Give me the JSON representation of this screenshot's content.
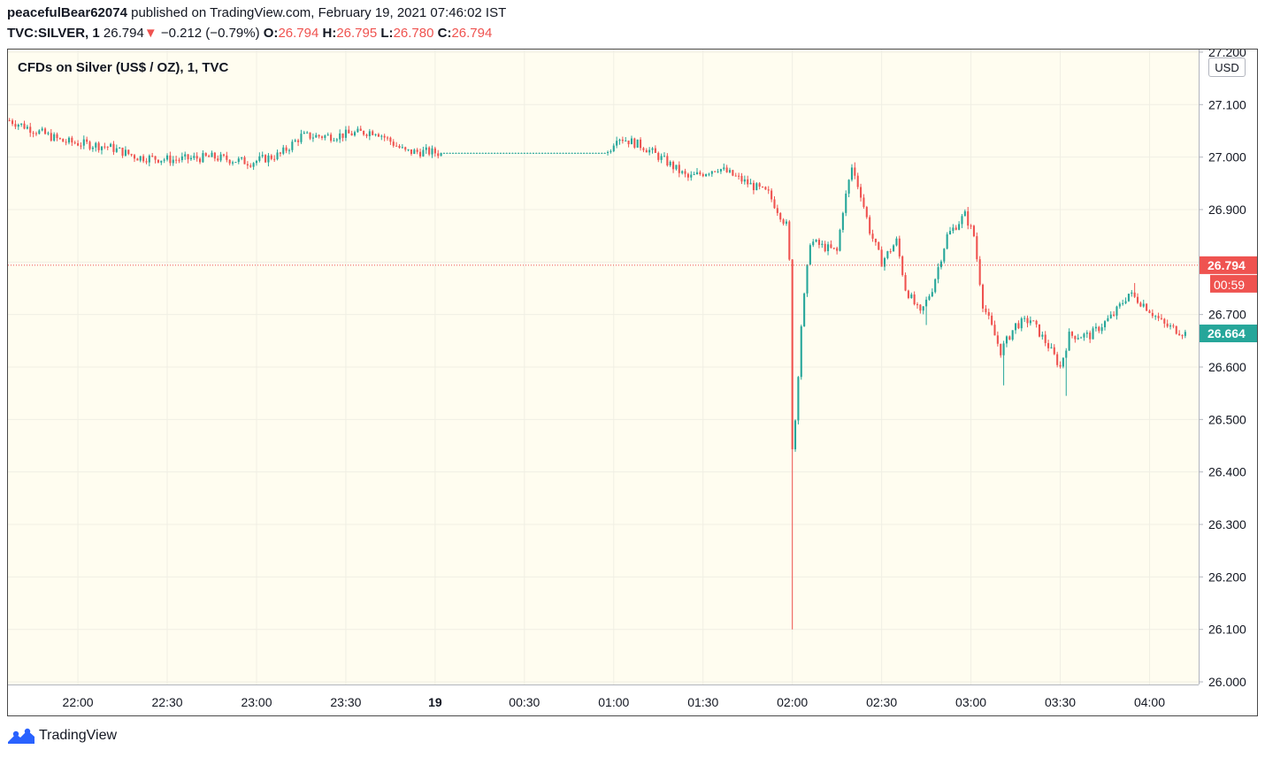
{
  "header": {
    "username": "peacefulBear62074",
    "published_text": "published on TradingView.com, February 19, 2021 07:46:02 IST",
    "symbol": "TVC:SILVER, 1",
    "last": "26.794",
    "down_marker": "▼",
    "change": "−0.212 (−0.79%)",
    "o_label": "O:",
    "o_value": "26.794",
    "h_label": "H:",
    "h_value": "26.795",
    "l_label": "L:",
    "l_value": "26.780",
    "c_label": "C:",
    "c_value": "26.794"
  },
  "chart": {
    "title": "CFDs on Silver (US$ / OZ), 1, TVC",
    "currency": "USD",
    "last_price_label": "26.794",
    "countdown_label": "00:59",
    "current_price_label": "26.664"
  },
  "footer": {
    "brand": "TradingView"
  },
  "colors": {
    "up": "#26a69a",
    "down": "#ef5350",
    "background": "#fffdf0",
    "grid": "#f0efe4",
    "green_marker": "#26a69a",
    "red_marker": "#ef5350"
  },
  "chart_data": {
    "type": "candlestick",
    "title": "CFDs on Silver (US$ / OZ), 1, TVC",
    "y_unit": "USD",
    "ylim": [
      25.995,
      27.205
    ],
    "y_ticks": [
      "27.200",
      "27.100",
      "27.000",
      "26.900",
      "26.800",
      "26.700",
      "26.600",
      "26.500",
      "26.400",
      "26.300",
      "26.200",
      "26.100",
      "26.000"
    ],
    "x_ticks": [
      {
        "label": "22:00",
        "min": -120
      },
      {
        "label": "22:30",
        "min": -90
      },
      {
        "label": "23:00",
        "min": -60
      },
      {
        "label": "23:30",
        "min": -30
      },
      {
        "label": "19",
        "min": 0,
        "bold": true
      },
      {
        "label": "00:30",
        "min": 30
      },
      {
        "label": "01:00",
        "min": 60
      },
      {
        "label": "01:30",
        "min": 90
      },
      {
        "label": "02:00",
        "min": 120
      },
      {
        "label": "02:30",
        "min": 150
      },
      {
        "label": "03:00",
        "min": 180
      },
      {
        "label": "03:30",
        "min": 210
      },
      {
        "label": "04:00",
        "min": 240
      }
    ],
    "x_range_minutes": [
      -143.5,
      256.5
    ],
    "price_line": 26.794,
    "current_price": 26.664,
    "keypoints": [
      {
        "t": -143,
        "p": 27.07
      },
      {
        "t": -125,
        "p": 27.03
      },
      {
        "t": -110,
        "p": 27.02
      },
      {
        "t": -100,
        "p": 27.0
      },
      {
        "t": -88,
        "p": 26.995
      },
      {
        "t": -75,
        "p": 27.0
      },
      {
        "t": -62,
        "p": 26.99
      },
      {
        "t": -52,
        "p": 27.005
      },
      {
        "t": -45,
        "p": 27.04
      },
      {
        "t": -35,
        "p": 27.04
      },
      {
        "t": -20,
        "p": 27.05
      },
      {
        "t": -10,
        "p": 27.01
      },
      {
        "t": -2,
        "p": 27.01
      },
      {
        "t": 1,
        "p": 27.008
      },
      {
        "t": 58,
        "p": 27.008
      },
      {
        "t": 61,
        "p": 27.04
      },
      {
        "t": 70,
        "p": 27.02
      },
      {
        "t": 78,
        "p": 26.99
      },
      {
        "t": 85,
        "p": 26.96
      },
      {
        "t": 95,
        "p": 26.98
      },
      {
        "t": 105,
        "p": 26.95
      },
      {
        "t": 112,
        "p": 26.93
      },
      {
        "t": 118,
        "p": 26.87
      },
      {
        "t": 119,
        "p": 26.8
      },
      {
        "t": 120,
        "p": 26.45
      },
      {
        "t": 121,
        "p": 26.5
      },
      {
        "t": 123,
        "p": 26.68
      },
      {
        "t": 126,
        "p": 26.84
      },
      {
        "t": 130,
        "p": 26.83
      },
      {
        "t": 135,
        "p": 26.82
      },
      {
        "t": 137,
        "p": 26.9
      },
      {
        "t": 140,
        "p": 26.98
      },
      {
        "t": 143,
        "p": 26.93
      },
      {
        "t": 146,
        "p": 26.86
      },
      {
        "t": 150,
        "p": 26.8
      },
      {
        "t": 155,
        "p": 26.84
      },
      {
        "t": 158,
        "p": 26.75
      },
      {
        "t": 163,
        "p": 26.7
      },
      {
        "t": 167,
        "p": 26.75
      },
      {
        "t": 172,
        "p": 26.85
      },
      {
        "t": 178,
        "p": 26.89
      },
      {
        "t": 181,
        "p": 26.85
      },
      {
        "t": 184,
        "p": 26.72
      },
      {
        "t": 190,
        "p": 26.63
      },
      {
        "t": 195,
        "p": 26.68
      },
      {
        "t": 200,
        "p": 26.69
      },
      {
        "t": 206,
        "p": 26.64
      },
      {
        "t": 210,
        "p": 26.6
      },
      {
        "t": 213,
        "p": 26.66
      },
      {
        "t": 220,
        "p": 26.66
      },
      {
        "t": 228,
        "p": 26.7
      },
      {
        "t": 233,
        "p": 26.74
      },
      {
        "t": 238,
        "p": 26.72
      },
      {
        "t": 245,
        "p": 26.68
      },
      {
        "t": 252,
        "p": 26.664
      }
    ],
    "extremes": [
      {
        "t": 120,
        "low": 26.1
      },
      {
        "t": 141,
        "high": 26.99
      },
      {
        "t": 165,
        "low": 26.68
      },
      {
        "t": 179,
        "high": 26.905
      },
      {
        "t": 191,
        "low": 26.565
      },
      {
        "t": 212,
        "low": 26.545
      },
      {
        "t": 235,
        "high": 26.76
      }
    ]
  }
}
